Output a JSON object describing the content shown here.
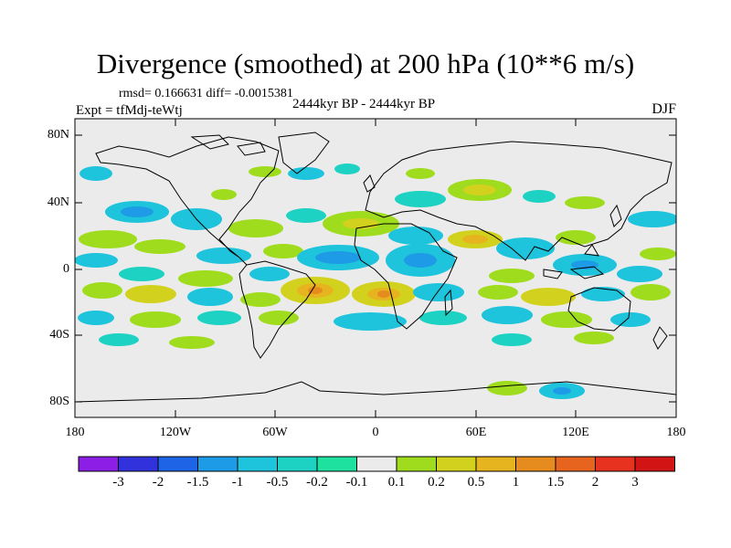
{
  "title": "Divergence (smoothed) at 200 hPa (10**6 m/s)",
  "stats": "rmsd= 0.166631 diff= -0.0015381",
  "expt": "Expt = tfMdj-teWtj",
  "subtitle": "2444kyr BP - 2444kyr BP",
  "season": "DJF",
  "lat_ticks": [
    "80N",
    "40N",
    "0",
    "40S",
    "80S"
  ],
  "lon_ticks": [
    "180",
    "120W",
    "60W",
    "0",
    "60E",
    "120E",
    "180"
  ],
  "colorbar": {
    "labels": [
      "-3",
      "-2",
      "-1.5",
      "-1",
      "-0.5",
      "-0.2",
      "-0.1",
      "0.1",
      "0.2",
      "0.5",
      "1",
      "1.5",
      "2",
      "3"
    ],
    "colors": [
      "#8c1ee6",
      "#3232dc",
      "#1e64e6",
      "#1e9be6",
      "#1ec3dc",
      "#1ed2c3",
      "#1ee1a0",
      "#ebebeb",
      "#a0dc1e",
      "#d2d21e",
      "#e6b41e",
      "#e68c1e",
      "#e6641e",
      "#e6321e",
      "#d21414"
    ]
  },
  "map_background": "#ebebeb",
  "chart_data": {
    "type": "heatmap",
    "title": "Divergence (smoothed) at 200 hPa (10**6 m/s)",
    "lon_range": [
      -180,
      180
    ],
    "lat_range": [
      -90,
      90
    ],
    "note": "difference field near zero; scattered blobs mostly between 40S and 40N"
  }
}
